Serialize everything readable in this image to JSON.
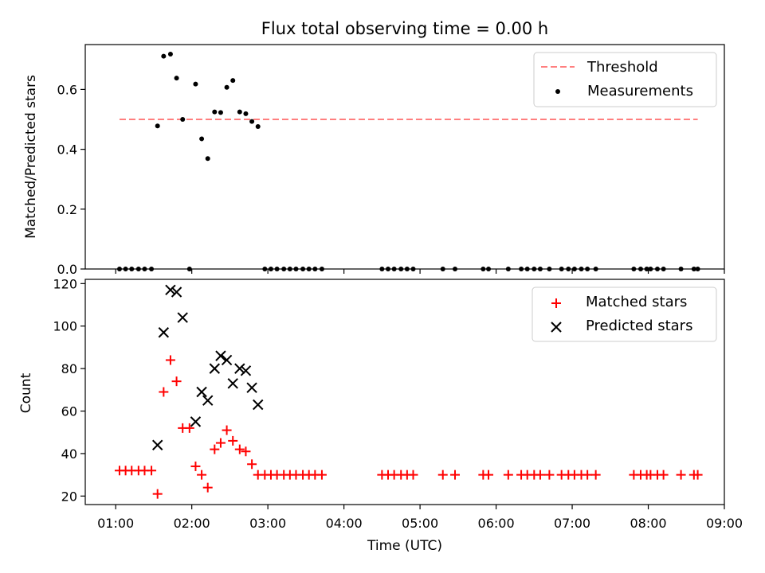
{
  "figure": {
    "title": "Flux total observing time = 0.00 h"
  },
  "chart_data": [
    {
      "type": "scatter",
      "ylabel": "Matched/Predicted stars",
      "xlabel": "",
      "xlim": [
        0.6,
        9.0
      ],
      "ylim": [
        0,
        0.75
      ],
      "yticks": [
        0.0,
        0.2,
        0.4,
        0.6
      ],
      "ytick_labels": [
        "0.0",
        "0.2",
        "0.4",
        "0.6"
      ],
      "grid": false,
      "legend_position": "top-right",
      "threshold": {
        "name": "Threshold",
        "value": 0.5,
        "x_range": [
          1.05,
          8.65
        ],
        "color": "#ff7f7f"
      },
      "series": [
        {
          "name": "Measurements",
          "color": "#000000",
          "marker": "dot",
          "points": [
            [
              1.05,
              0
            ],
            [
              1.13,
              0
            ],
            [
              1.21,
              0
            ],
            [
              1.3,
              0
            ],
            [
              1.38,
              0
            ],
            [
              1.47,
              0
            ],
            [
              1.55,
              0.478
            ],
            [
              1.63,
              0.711
            ],
            [
              1.72,
              0.718
            ],
            [
              1.8,
              0.638
            ],
            [
              1.88,
              0.5
            ],
            [
              1.97,
              0
            ],
            [
              2.05,
              0.618
            ],
            [
              2.13,
              0.435
            ],
            [
              2.21,
              0.369
            ],
            [
              2.3,
              0.525
            ],
            [
              2.38,
              0.523
            ],
            [
              2.46,
              0.607
            ],
            [
              2.54,
              0.63
            ],
            [
              2.63,
              0.525
            ],
            [
              2.71,
              0.519
            ],
            [
              2.79,
              0.493
            ],
            [
              2.87,
              0.476
            ],
            [
              2.96,
              0
            ],
            [
              3.04,
              0
            ],
            [
              3.12,
              0
            ],
            [
              3.21,
              0
            ],
            [
              3.29,
              0
            ],
            [
              3.37,
              0
            ],
            [
              3.46,
              0
            ],
            [
              3.54,
              0
            ],
            [
              3.62,
              0
            ],
            [
              3.71,
              0
            ],
            [
              4.5,
              0
            ],
            [
              4.58,
              0
            ],
            [
              4.66,
              0
            ],
            [
              4.75,
              0
            ],
            [
              4.83,
              0
            ],
            [
              4.91,
              0
            ],
            [
              5.3,
              0
            ],
            [
              5.46,
              0
            ],
            [
              5.83,
              0
            ],
            [
              5.9,
              0
            ],
            [
              6.16,
              0
            ],
            [
              6.33,
              0
            ],
            [
              6.41,
              0
            ],
            [
              6.5,
              0
            ],
            [
              6.58,
              0
            ],
            [
              6.7,
              0
            ],
            [
              6.86,
              0
            ],
            [
              6.95,
              0
            ],
            [
              7.03,
              0
            ],
            [
              7.12,
              0
            ],
            [
              7.2,
              0
            ],
            [
              7.31,
              0
            ],
            [
              7.81,
              0
            ],
            [
              7.9,
              0
            ],
            [
              7.98,
              0
            ],
            [
              8.03,
              0
            ],
            [
              8.12,
              0
            ],
            [
              8.2,
              0
            ],
            [
              8.43,
              0
            ],
            [
              8.6,
              0
            ],
            [
              8.65,
              0
            ]
          ]
        }
      ]
    },
    {
      "type": "scatter",
      "ylabel": "Count",
      "xlabel": "Time (UTC)",
      "xlim": [
        0.6,
        9.0
      ],
      "ylim": [
        16,
        122
      ],
      "yticks": [
        20,
        40,
        60,
        80,
        100,
        120
      ],
      "ytick_labels": [
        "20",
        "40",
        "60",
        "80",
        "100",
        "120"
      ],
      "xticks": [
        1,
        2,
        3,
        4,
        5,
        6,
        7,
        8,
        9
      ],
      "xtick_labels": [
        "01:00",
        "02:00",
        "03:00",
        "04:00",
        "05:00",
        "06:00",
        "07:00",
        "08:00",
        "09:00"
      ],
      "grid": false,
      "legend_position": "top-right",
      "series": [
        {
          "name": "Matched stars",
          "color": "#ff0000",
          "marker": "plus",
          "points": [
            [
              1.05,
              32
            ],
            [
              1.13,
              32
            ],
            [
              1.21,
              32
            ],
            [
              1.3,
              32
            ],
            [
              1.38,
              32
            ],
            [
              1.47,
              32
            ],
            [
              1.55,
              21
            ],
            [
              1.63,
              69
            ],
            [
              1.72,
              84
            ],
            [
              1.8,
              74
            ],
            [
              1.88,
              52
            ],
            [
              1.97,
              52
            ],
            [
              2.05,
              34
            ],
            [
              2.13,
              30
            ],
            [
              2.21,
              24
            ],
            [
              2.3,
              42
            ],
            [
              2.38,
              45
            ],
            [
              2.46,
              51
            ],
            [
              2.54,
              46
            ],
            [
              2.63,
              42
            ],
            [
              2.71,
              41
            ],
            [
              2.79,
              35
            ],
            [
              2.87,
              30
            ],
            [
              2.96,
              30
            ],
            [
              3.04,
              30
            ],
            [
              3.12,
              30
            ],
            [
              3.21,
              30
            ],
            [
              3.29,
              30
            ],
            [
              3.37,
              30
            ],
            [
              3.46,
              30
            ],
            [
              3.54,
              30
            ],
            [
              3.62,
              30
            ],
            [
              3.71,
              30
            ],
            [
              4.5,
              30
            ],
            [
              4.58,
              30
            ],
            [
              4.66,
              30
            ],
            [
              4.75,
              30
            ],
            [
              4.83,
              30
            ],
            [
              4.91,
              30
            ],
            [
              5.3,
              30
            ],
            [
              5.46,
              30
            ],
            [
              5.83,
              30
            ],
            [
              5.9,
              30
            ],
            [
              6.16,
              30
            ],
            [
              6.33,
              30
            ],
            [
              6.41,
              30
            ],
            [
              6.5,
              30
            ],
            [
              6.58,
              30
            ],
            [
              6.7,
              30
            ],
            [
              6.86,
              30
            ],
            [
              6.95,
              30
            ],
            [
              7.03,
              30
            ],
            [
              7.12,
              30
            ],
            [
              7.2,
              30
            ],
            [
              7.31,
              30
            ],
            [
              7.81,
              30
            ],
            [
              7.9,
              30
            ],
            [
              7.98,
              30
            ],
            [
              8.03,
              30
            ],
            [
              8.12,
              30
            ],
            [
              8.2,
              30
            ],
            [
              8.43,
              30
            ],
            [
              8.6,
              30
            ],
            [
              8.65,
              30
            ]
          ]
        },
        {
          "name": "Predicted stars",
          "color": "#000000",
          "marker": "x",
          "points": [
            [
              1.55,
              44
            ],
            [
              1.63,
              97
            ],
            [
              1.72,
              117
            ],
            [
              1.8,
              116
            ],
            [
              1.88,
              104
            ],
            [
              2.05,
              55
            ],
            [
              2.13,
              69
            ],
            [
              2.21,
              65
            ],
            [
              2.3,
              80
            ],
            [
              2.38,
              86
            ],
            [
              2.46,
              84
            ],
            [
              2.54,
              73
            ],
            [
              2.63,
              80
            ],
            [
              2.71,
              79
            ],
            [
              2.79,
              71
            ],
            [
              2.87,
              63
            ]
          ]
        }
      ]
    }
  ]
}
